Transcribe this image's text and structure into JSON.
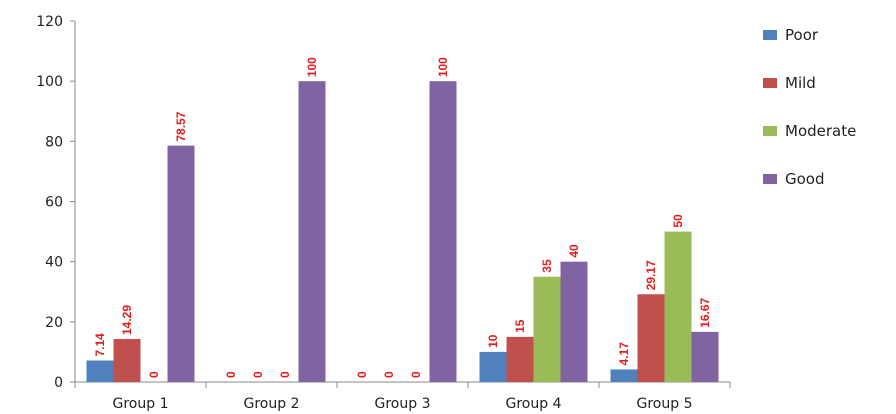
{
  "chart_data": {
    "type": "bar",
    "categories": [
      "Group 1",
      "Group 2",
      "Group 3",
      "Group 4",
      "Group 5"
    ],
    "series": [
      {
        "name": "Poor",
        "color": "#4f81bd",
        "values": [
          7.14,
          0,
          0,
          10,
          4.17
        ],
        "labels": [
          "7.14",
          "0",
          "0",
          "10",
          "4.17"
        ]
      },
      {
        "name": "Mild",
        "color": "#c0504d",
        "values": [
          14.29,
          0,
          0,
          15,
          29.17
        ],
        "labels": [
          "14.29",
          "0",
          "0",
          "15",
          "29.17"
        ]
      },
      {
        "name": "Moderate",
        "color": "#9bbb59",
        "values": [
          0,
          0,
          0,
          35,
          50
        ],
        "labels": [
          "0",
          "0",
          "0",
          "35",
          "50"
        ]
      },
      {
        "name": "Good",
        "color": "#8064a2",
        "values": [
          78.57,
          100,
          100,
          40,
          16.67
        ],
        "labels": [
          "78.57",
          "100",
          "100",
          "40",
          "16.67"
        ]
      }
    ],
    "yticks": [
      "0",
      "20",
      "40",
      "60",
      "80",
      "100",
      "120"
    ],
    "ylim": [
      0,
      120
    ],
    "title": "",
    "xlabel": "",
    "ylabel": "",
    "legend_position": "right",
    "grid": false
  }
}
